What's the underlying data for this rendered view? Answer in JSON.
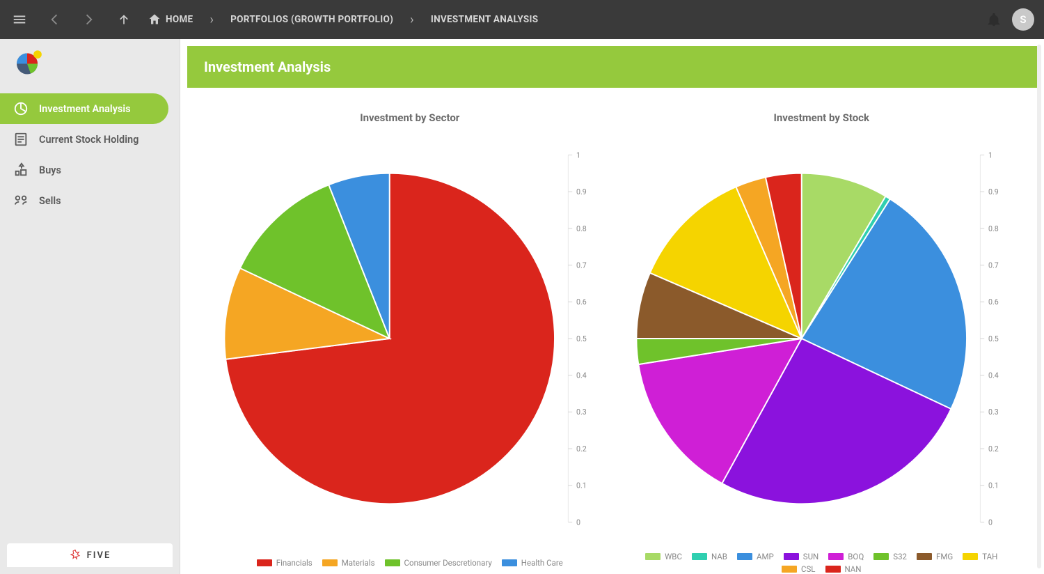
{
  "topbar": {
    "home_label": "HOME",
    "crumb_portfolios": "PORTFOLIOS (GROWTH PORTFOLIO)",
    "crumb_analysis": "INVESTMENT ANALYSIS",
    "avatar_initial": "S"
  },
  "sidebar": {
    "items": [
      {
        "label": "Investment Analysis",
        "name": "investment-analysis",
        "active": true
      },
      {
        "label": "Current Stock Holding",
        "name": "current-stock-holding",
        "active": false
      },
      {
        "label": "Buys",
        "name": "buys",
        "active": false
      },
      {
        "label": "Sells",
        "name": "sells",
        "active": false
      }
    ],
    "footer_brand": "FIVE"
  },
  "page": {
    "title": "Investment Analysis"
  },
  "charts": {
    "sector": {
      "type": "pie",
      "title": "Investment by Sector",
      "stroke": "#ffffff",
      "stroke_width": 2,
      "axis": {
        "min": 0,
        "max": 1,
        "step": 0.1,
        "label_color": "#888888",
        "grid_color": "#e7e7e7"
      },
      "slices": [
        {
          "label": "Financials",
          "value": 0.73,
          "color": "#da251c"
        },
        {
          "label": "Materials",
          "value": 0.09,
          "color": "#f5a623"
        },
        {
          "label": "Consumer Descretionary",
          "value": 0.12,
          "color": "#6fc22b"
        },
        {
          "label": "Health Care",
          "value": 0.06,
          "color": "#3b8fde"
        }
      ]
    },
    "stock": {
      "type": "pie",
      "title": "Investment by Stock",
      "stroke": "#ffffff",
      "stroke_width": 2,
      "axis": {
        "min": 0,
        "max": 1,
        "step": 0.1,
        "label_color": "#888888",
        "grid_color": "#e7e7e7"
      },
      "slices": [
        {
          "label": "WBC",
          "value": 0.085,
          "color": "#a8da66"
        },
        {
          "label": "NAB",
          "value": 0.005,
          "color": "#2fcfb0"
        },
        {
          "label": "AMP",
          "value": 0.23,
          "color": "#3b8fde"
        },
        {
          "label": "SUN",
          "value": 0.26,
          "color": "#8b12dd"
        },
        {
          "label": "BOQ",
          "value": 0.145,
          "color": "#cf1fd6"
        },
        {
          "label": "S32",
          "value": 0.025,
          "color": "#6fc22b"
        },
        {
          "label": "FMG",
          "value": 0.065,
          "color": "#8b5a2b"
        },
        {
          "label": "TAH",
          "value": 0.12,
          "color": "#f5d400"
        },
        {
          "label": "CSL",
          "value": 0.03,
          "color": "#f5a623"
        },
        {
          "label": "NAN",
          "value": 0.035,
          "color": "#da251c"
        }
      ]
    }
  },
  "colors": {
    "topbar_bg": "#3a3a3a",
    "sidebar_bg": "#e9e9e9",
    "accent": "#95c93d",
    "page_bg": "#ffffff",
    "text_muted": "#6b6b6b"
  }
}
